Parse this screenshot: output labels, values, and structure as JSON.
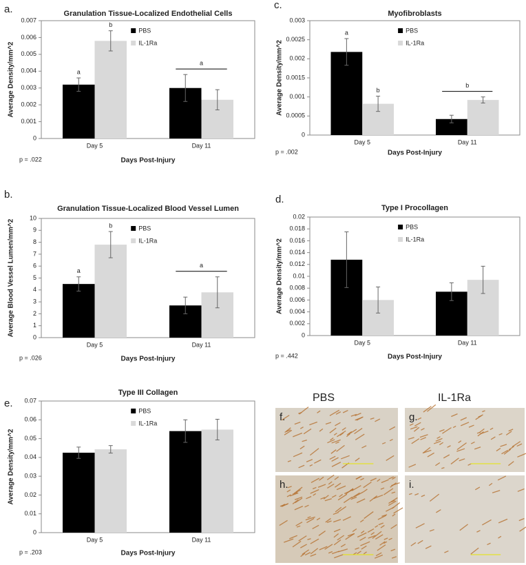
{
  "chart_data": [
    {
      "type": "bar",
      "panel": "a.",
      "title": "Granulation Tissue-Localized Endothelial Cells",
      "ylabel": "Average Density/mm^2",
      "xlabel": "Days Post-Injury",
      "note": "p = .022",
      "categories": [
        "Day 5",
        "Day 11"
      ],
      "series": [
        {
          "name": "PBS",
          "color": "#000000",
          "values": [
            0.0032,
            0.003
          ],
          "errors": [
            0.0004,
            0.0008
          ],
          "annotations": [
            "a",
            null
          ]
        },
        {
          "name": "IL-1Ra",
          "color": "#d9d9d9",
          "values": [
            0.0058,
            0.0023
          ],
          "errors": [
            0.0006,
            0.0006
          ],
          "annotations": [
            "b",
            null
          ]
        }
      ],
      "group_annotations": [
        null,
        "a"
      ],
      "ylim": [
        0,
        0.007
      ],
      "yticks": [
        0,
        0.001,
        0.002,
        0.003,
        0.004,
        0.005,
        0.006,
        0.007
      ],
      "legend": "top"
    },
    {
      "type": "bar",
      "panel": "c.",
      "title": "Myofibroblasts",
      "ylabel": "Average Density/mm^2",
      "xlabel": "Days Post-Injury",
      "note": "p = .002",
      "categories": [
        "Day 5",
        "Day 11"
      ],
      "series": [
        {
          "name": "PBS",
          "color": "#000000",
          "values": [
            0.00218,
            0.00042
          ],
          "errors": [
            0.00035,
            0.0001
          ],
          "annotations": [
            "a",
            null
          ]
        },
        {
          "name": "IL-1Ra",
          "color": "#d9d9d9",
          "values": [
            0.00082,
            0.00092
          ],
          "errors": [
            0.0002,
            8e-05
          ],
          "annotations": [
            "b",
            null
          ]
        }
      ],
      "group_annotations": [
        null,
        "b"
      ],
      "ylim": [
        0,
        0.003
      ],
      "yticks": [
        0,
        0.0005,
        0.001,
        0.0015,
        0.002,
        0.0025,
        0.003
      ],
      "legend": "top"
    },
    {
      "type": "bar",
      "panel": "b.",
      "title": "Granulation Tissue-Localized Blood Vessel Lumen",
      "ylabel": "Average Blood Vessel Lumen/mm^2",
      "xlabel": "Days Post-Injury",
      "note": "p = .026",
      "categories": [
        "Day 5",
        "Day 11"
      ],
      "series": [
        {
          "name": "PBS",
          "color": "#000000",
          "values": [
            4.5,
            2.7
          ],
          "errors": [
            0.6,
            0.7
          ],
          "annotations": [
            "a",
            null
          ]
        },
        {
          "name": "IL-1Ra",
          "color": "#d9d9d9",
          "values": [
            7.8,
            3.8
          ],
          "errors": [
            1.1,
            1.3
          ],
          "annotations": [
            "b",
            null
          ]
        }
      ],
      "group_annotations": [
        null,
        "a"
      ],
      "ylim": [
        0,
        10
      ],
      "yticks": [
        0,
        1,
        2,
        3,
        4,
        5,
        6,
        7,
        8,
        9,
        10
      ],
      "legend": "top"
    },
    {
      "type": "bar",
      "panel": "d.",
      "title": "Type I Procollagen",
      "ylabel": "Average Density/mm^2",
      "xlabel": "Days Post-Injury",
      "note": "p = .442",
      "categories": [
        "Day 5",
        "Day 11"
      ],
      "series": [
        {
          "name": "PBS",
          "color": "#000000",
          "values": [
            0.0128,
            0.0074
          ],
          "errors": [
            0.0047,
            0.0015
          ]
        },
        {
          "name": "IL-1Ra",
          "color": "#d9d9d9",
          "values": [
            0.006,
            0.0094
          ],
          "errors": [
            0.0022,
            0.0023
          ]
        }
      ],
      "ylim": [
        0,
        0.02
      ],
      "yticks": [
        0,
        0.002,
        0.004,
        0.006,
        0.008,
        0.01,
        0.012,
        0.014,
        0.016,
        0.018,
        0.02
      ],
      "legend": "top"
    },
    {
      "type": "bar",
      "panel": "e.",
      "title": "Type III Collagen",
      "ylabel": "Average Density/mm^2",
      "xlabel": "Days Post-Injury",
      "note": "p = .203",
      "categories": [
        "Day 5",
        "Day 11"
      ],
      "series": [
        {
          "name": "PBS",
          "color": "#000000",
          "values": [
            0.0425,
            0.054
          ],
          "errors": [
            0.003,
            0.006
          ]
        },
        {
          "name": "IL-1Ra",
          "color": "#d9d9d9",
          "values": [
            0.0443,
            0.0548
          ],
          "errors": [
            0.002,
            0.0055
          ]
        }
      ],
      "ylim": [
        0,
        0.07
      ],
      "yticks": [
        0,
        0.01,
        0.02,
        0.03,
        0.04,
        0.05,
        0.06,
        0.07
      ],
      "legend": "top"
    }
  ],
  "micrographs": {
    "columns": [
      "PBS",
      "IL-1Ra"
    ],
    "panels": [
      "f.",
      "g.",
      "h.",
      "i."
    ]
  }
}
